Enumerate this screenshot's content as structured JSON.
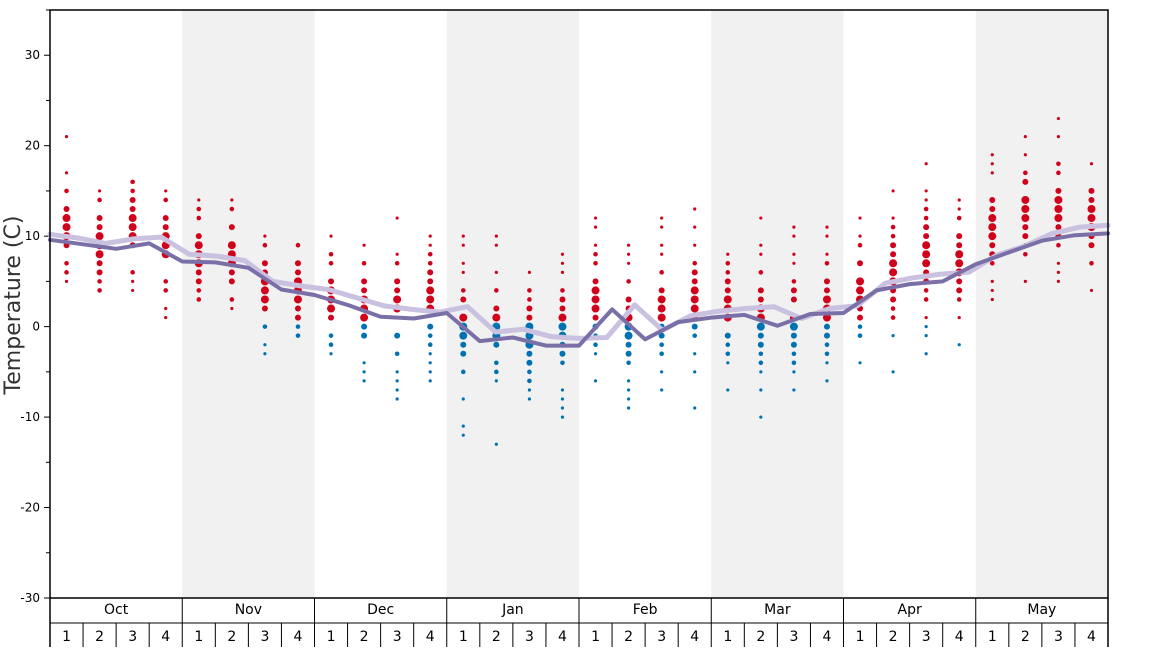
{
  "chart_data": {
    "type": "scatter",
    "ylabel": "Temperature (C)",
    "ylim": [
      -30,
      35
    ],
    "y_major_ticks": [
      -30,
      -20,
      -10,
      0,
      10,
      20,
      30
    ],
    "months": [
      "Oct",
      "Nov",
      "Dec",
      "Jan",
      "Feb",
      "Mar",
      "Apr",
      "May"
    ],
    "weeks": [
      "1",
      "2",
      "3",
      "4"
    ],
    "colors": {
      "warm": "#d0021b",
      "cold": "#0072b2",
      "line_dark": "#7b6fa8",
      "line_light": "#c9c1df",
      "band": "#f1f1f1"
    },
    "series": [
      {
        "values": [
          10.2,
          9.8,
          9.2,
          9.7,
          9.9,
          8.0,
          7.8,
          7.3,
          5.0,
          4.5,
          4.1,
          3.2,
          2.3,
          1.9,
          1.6,
          2.2,
          -0.6,
          -0.3,
          -1.1,
          -1.3,
          -1.2,
          2.4,
          -0.4,
          1.2,
          1.7,
          2.0,
          2.2,
          0.9,
          2.0,
          2.3,
          4.8,
          5.4,
          5.8,
          6.0,
          7.9,
          8.9,
          10.3,
          11.0,
          11.2
        ]
      },
      {
        "values": [
          9.6,
          9.1,
          8.6,
          9.2,
          7.2,
          7.1,
          6.5,
          4.1,
          3.5,
          2.4,
          1.1,
          0.9,
          1.5,
          -1.6,
          -1.2,
          -2.1,
          -2.1,
          1.9,
          -1.4,
          0.5,
          1.0,
          1.3,
          0.1,
          1.4,
          1.5,
          4.0,
          4.7,
          5.0,
          6.9,
          8.2,
          9.5,
          10.1,
          10.3
        ]
      }
    ],
    "dot_columns": [
      {
        "month": "Oct",
        "week": "1",
        "temps": [
          21,
          17,
          15,
          13,
          12,
          11,
          10,
          9,
          7,
          6,
          5
        ]
      },
      {
        "month": "Oct",
        "week": "2",
        "temps": [
          15,
          14,
          12,
          11,
          10,
          9,
          8,
          7,
          6,
          5,
          4
        ]
      },
      {
        "month": "Oct",
        "week": "3",
        "temps": [
          16,
          15,
          14,
          13,
          12,
          11,
          10,
          9,
          6,
          5,
          4
        ]
      },
      {
        "month": "Oct",
        "week": "4",
        "temps": [
          15,
          14,
          12,
          11,
          10,
          9,
          8,
          5,
          4,
          2,
          1
        ]
      },
      {
        "month": "Nov",
        "week": "1",
        "temps": [
          14,
          13,
          12,
          10,
          9,
          8,
          7,
          6,
          5,
          4,
          3
        ]
      },
      {
        "month": "Nov",
        "week": "2",
        "temps": [
          14,
          13,
          11,
          9,
          8,
          7,
          6,
          5,
          3,
          2
        ]
      },
      {
        "month": "Nov",
        "week": "3",
        "temps": [
          10,
          9,
          7,
          6,
          5,
          4,
          3,
          2,
          0,
          -2,
          -3
        ]
      },
      {
        "month": "Nov",
        "week": "4",
        "temps": [
          9,
          7,
          6,
          5,
          4,
          3,
          2,
          1,
          0,
          -1
        ]
      },
      {
        "month": "Dec",
        "week": "1",
        "temps": [
          10,
          8,
          7,
          5,
          4,
          3,
          2,
          1,
          -1,
          -2,
          -3
        ]
      },
      {
        "month": "Dec",
        "week": "2",
        "temps": [
          9,
          7,
          5,
          4,
          3,
          2,
          1,
          0,
          -1,
          -4,
          -5,
          -6
        ]
      },
      {
        "month": "Dec",
        "week": "3",
        "temps": [
          12,
          8,
          7,
          5,
          4,
          3,
          2,
          -1,
          -3,
          -5,
          -6,
          -7,
          -8
        ]
      },
      {
        "month": "Dec",
        "week": "4",
        "temps": [
          10,
          9,
          8,
          7,
          6,
          5,
          4,
          3,
          2,
          0,
          -1,
          -2,
          -3,
          -4,
          -5,
          -6
        ]
      },
      {
        "month": "Jan",
        "week": "1",
        "temps": [
          10,
          9,
          7,
          6,
          4,
          3,
          1,
          0,
          -1,
          -2,
          -3,
          -5,
          -8,
          -11,
          -12
        ]
      },
      {
        "month": "Jan",
        "week": "2",
        "temps": [
          10,
          9,
          6,
          4,
          2,
          1,
          0,
          -1,
          -2,
          -4,
          -5,
          -6,
          -13
        ]
      },
      {
        "month": "Jan",
        "week": "3",
        "temps": [
          6,
          4,
          3,
          2,
          1,
          0,
          -1,
          -2,
          -3,
          -4,
          -5,
          -6,
          -7,
          -8
        ]
      },
      {
        "month": "Jan",
        "week": "4",
        "temps": [
          8,
          7,
          6,
          4,
          3,
          2,
          1,
          0,
          -1,
          -2,
          -3,
          -4,
          -7,
          -8,
          -9,
          -10
        ]
      },
      {
        "month": "Feb",
        "week": "1",
        "temps": [
          12,
          11,
          9,
          8,
          7,
          5,
          4,
          3,
          2,
          1,
          0,
          -1,
          -2,
          -3,
          -6
        ]
      },
      {
        "month": "Feb",
        "week": "2",
        "temps": [
          9,
          8,
          7,
          5,
          3,
          2,
          1,
          0,
          -1,
          -2,
          -3,
          -4,
          -6,
          -7,
          -8,
          -9
        ]
      },
      {
        "month": "Feb",
        "week": "3",
        "temps": [
          12,
          11,
          9,
          8,
          6,
          4,
          3,
          2,
          1,
          0,
          -1,
          -2,
          -3,
          -5,
          -7
        ]
      },
      {
        "month": "Feb",
        "week": "4",
        "temps": [
          13,
          11,
          9,
          7,
          6,
          5,
          4,
          3,
          2,
          1,
          0,
          -1,
          -3,
          -5,
          -9
        ]
      },
      {
        "month": "Mar",
        "week": "1",
        "temps": [
          8,
          7,
          6,
          5,
          4,
          3,
          2,
          1,
          -1,
          -2,
          -3,
          -4,
          -7
        ]
      },
      {
        "month": "Mar",
        "week": "2",
        "temps": [
          12,
          9,
          8,
          6,
          4,
          3,
          2,
          1,
          0,
          -1,
          -2,
          -3,
          -4,
          -5,
          -7,
          -10
        ]
      },
      {
        "month": "Mar",
        "week": "3",
        "temps": [
          11,
          10,
          8,
          7,
          5,
          4,
          3,
          1,
          0,
          -1,
          -2,
          -3,
          -4,
          -5,
          -7
        ]
      },
      {
        "month": "Mar",
        "week": "4",
        "temps": [
          11,
          10,
          8,
          7,
          5,
          4,
          3,
          2,
          1,
          0,
          -1,
          -2,
          -3,
          -4,
          -6
        ]
      },
      {
        "month": "Apr",
        "week": "1",
        "temps": [
          12,
          10,
          9,
          7,
          5,
          4,
          3,
          2,
          1,
          0,
          -1,
          -4
        ]
      },
      {
        "month": "Apr",
        "week": "2",
        "temps": [
          15,
          12,
          11,
          10,
          9,
          8,
          7,
          6,
          5,
          4,
          3,
          2,
          1,
          -1,
          -5
        ]
      },
      {
        "month": "Apr",
        "week": "3",
        "temps": [
          18,
          15,
          14,
          13,
          12,
          11,
          10,
          9,
          8,
          7,
          6,
          5,
          4,
          3,
          1,
          0,
          -1,
          -3
        ]
      },
      {
        "month": "Apr",
        "week": "4",
        "temps": [
          14,
          13,
          12,
          10,
          9,
          8,
          7,
          6,
          5,
          4,
          3,
          1,
          -2
        ]
      },
      {
        "month": "May",
        "week": "1",
        "temps": [
          19,
          18,
          17,
          14,
          13,
          12,
          11,
          10,
          9,
          8,
          7,
          5,
          4,
          3
        ]
      },
      {
        "month": "May",
        "week": "2",
        "temps": [
          21,
          19,
          17,
          16,
          14,
          13,
          12,
          11,
          10,
          9,
          8,
          5
        ]
      },
      {
        "month": "May",
        "week": "3",
        "temps": [
          23,
          21,
          18,
          17,
          15,
          14,
          13,
          12,
          11,
          10,
          9,
          7,
          6,
          5
        ]
      },
      {
        "month": "May",
        "week": "4",
        "temps": [
          18,
          15,
          14,
          13,
          12,
          11,
          10,
          9,
          7,
          4
        ]
      }
    ]
  }
}
